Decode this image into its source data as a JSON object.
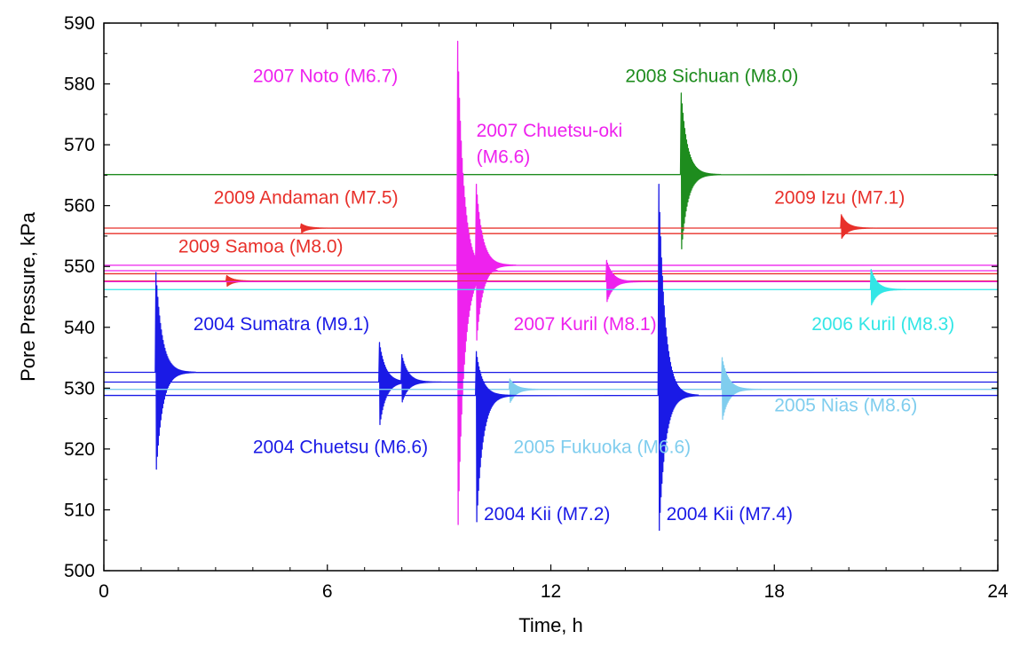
{
  "chart_data": {
    "type": "line",
    "xlabel": "Time, h",
    "ylabel": "Pore Pressure, kPa",
    "xlim": [
      0,
      24
    ],
    "ylim": [
      500,
      590
    ],
    "xticks": [
      0,
      6,
      12,
      18,
      24
    ],
    "yticks": [
      500,
      510,
      520,
      530,
      540,
      550,
      560,
      570,
      580,
      590
    ],
    "grid": false,
    "colors": {
      "blue": "#1a1ae6",
      "magenta": "#ee22ee",
      "green": "#1e8c1e",
      "red": "#e8302a",
      "cyan": "#33e6e6",
      "lightblue": "#7fcdee"
    },
    "series": [
      {
        "color": "green",
        "baseline": 565.1,
        "events": [
          {
            "t": 15.5,
            "peak": 578.5,
            "trough": 552.0
          }
        ]
      },
      {
        "color": "red",
        "baseline": 556.3,
        "events": [
          {
            "t": 5.3,
            "peak": 557.0,
            "trough": 555.5
          },
          {
            "t": 19.8,
            "peak": 558.5,
            "trough": 554.5
          }
        ]
      },
      {
        "color": "red",
        "baseline": 555.4,
        "events": []
      },
      {
        "color": "magenta",
        "baseline": 549.3,
        "events": [
          {
            "t": 9.5,
            "peak": 587.0,
            "trough": 504.5
          }
        ]
      },
      {
        "color": "magenta",
        "baseline": 550.2,
        "events": [
          {
            "t": 10.0,
            "peak": 563.5,
            "trough": 537.0
          }
        ]
      },
      {
        "color": "red",
        "baseline": 548.8,
        "events": []
      },
      {
        "color": "red",
        "baseline": 547.6,
        "events": [
          {
            "t": 3.3,
            "peak": 548.5,
            "trough": 546.7
          }
        ]
      },
      {
        "color": "magenta",
        "baseline": 547.5,
        "events": [
          {
            "t": 13.5,
            "peak": 551.0,
            "trough": 544.0
          }
        ]
      },
      {
        "color": "cyan",
        "baseline": 546.2,
        "events": [
          {
            "t": 20.6,
            "peak": 549.5,
            "trough": 543.5
          }
        ]
      },
      {
        "color": "blue",
        "baseline": 532.6,
        "events": [
          {
            "t": 1.4,
            "peak": 549.0,
            "trough": 515.5
          }
        ]
      },
      {
        "color": "blue",
        "baseline": 531.0,
        "events": [
          {
            "t": 7.4,
            "peak": 537.5,
            "trough": 523.5
          },
          {
            "t": 8.0,
            "peak": 535.5,
            "trough": 527.5
          }
        ]
      },
      {
        "color": "lightblue",
        "baseline": 529.8,
        "events": [
          {
            "t": 10.9,
            "peak": 531.5,
            "trough": 527.5
          },
          {
            "t": 16.6,
            "peak": 535.0,
            "trough": 524.5
          }
        ]
      },
      {
        "color": "blue",
        "baseline": 528.8,
        "events": [
          {
            "t": 10.0,
            "peak": 536.0,
            "trough": 506.5
          },
          {
            "t": 14.9,
            "peak": 563.5,
            "trough": 505.0
          }
        ]
      }
    ],
    "annotations": [
      {
        "text": "2008 Sichuan (M8.0)",
        "color": "green",
        "x": 14.0,
        "y": 580.3
      },
      {
        "text": "2007 Noto (M6.7)",
        "color": "magenta",
        "x": 4.0,
        "y": 580.3
      },
      {
        "text": "2007 Chuetsu-oki",
        "color": "magenta",
        "x": 10.0,
        "y": 571.3
      },
      {
        "text": "(M6.6)",
        "color": "magenta",
        "x": 10.0,
        "y": 567.0
      },
      {
        "text": "2009 Andaman (M7.5)",
        "color": "red",
        "x": 2.95,
        "y": 560.3
      },
      {
        "text": "2009 Izu (M7.1)",
        "color": "red",
        "x": 18.0,
        "y": 560.3
      },
      {
        "text": "2009 Samoa (M8.0)",
        "color": "red",
        "x": 2.0,
        "y": 552.3
      },
      {
        "text": "2004 Sumatra (M9.1)",
        "color": "blue",
        "x": 2.4,
        "y": 539.5
      },
      {
        "text": "2007 Kuril (M8.1)",
        "color": "magenta",
        "x": 11.0,
        "y": 539.5
      },
      {
        "text": "2006 Kuril (M8.3)",
        "color": "cyan",
        "x": 19.0,
        "y": 539.5
      },
      {
        "text": "2005 Nias (M8.6)",
        "color": "lightblue",
        "x": 18.0,
        "y": 526.2
      },
      {
        "text": "2004 Chuetsu (M6.6)",
        "color": "blue",
        "x": 4.0,
        "y": 519.3
      },
      {
        "text": "2005 Fukuoka (M6.6)",
        "color": "lightblue",
        "x": 11.0,
        "y": 519.3
      },
      {
        "text": "2004 Kii (M7.2)",
        "color": "blue",
        "x": 10.2,
        "y": 508.3
      },
      {
        "text": "2004 Kii (M7.4)",
        "color": "blue",
        "x": 15.1,
        "y": 508.3
      }
    ]
  }
}
